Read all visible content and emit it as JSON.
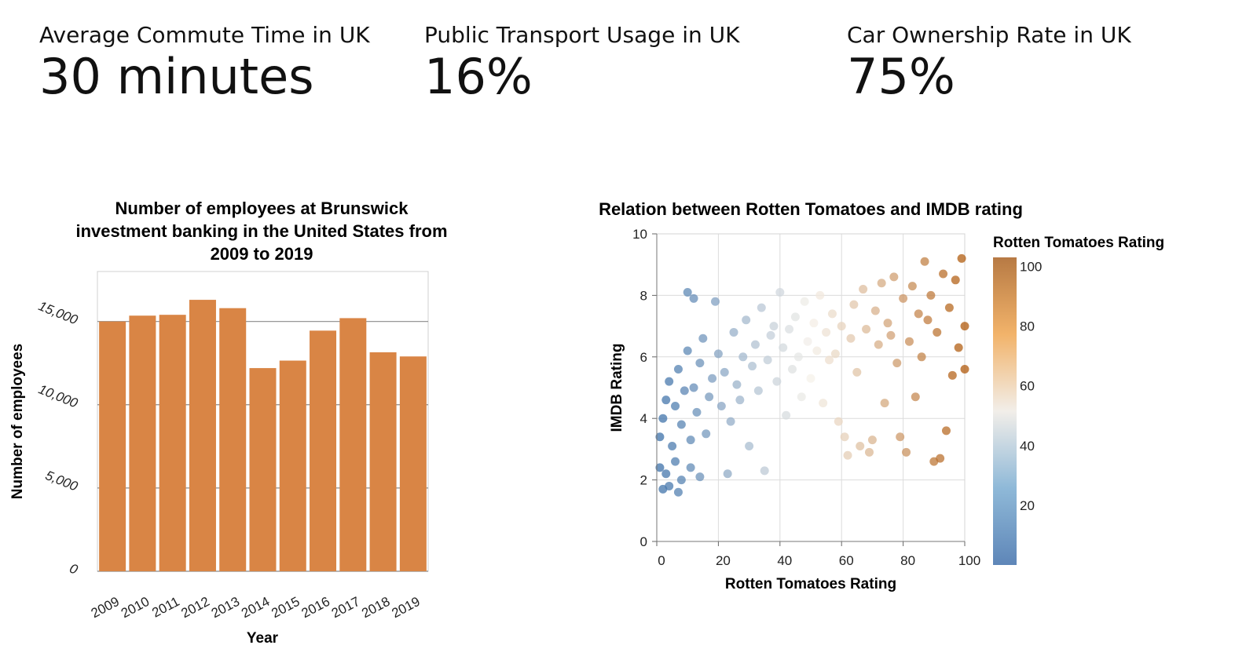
{
  "kpis": [
    {
      "label": "Average Commute Time in UK",
      "value": "30 minutes"
    },
    {
      "label": "Public Transport Usage in UK",
      "value": "16%"
    },
    {
      "label": "Car Ownership Rate in UK",
      "value": "75%"
    }
  ],
  "chart_data": [
    {
      "type": "bar",
      "title": "Number of employees at Brunswick investment banking in the United States from 2009 to 2019",
      "title_lines": [
        "Number of employees at Brunswick",
        "investment banking in the United States from",
        "2009 to 2019"
      ],
      "xlabel": "Year",
      "ylabel": "Number of employees",
      "categories": [
        "2009",
        "2010",
        "2011",
        "2012",
        "2013",
        "2014",
        "2015",
        "2016",
        "2017",
        "2018",
        "2019"
      ],
      "values": [
        15000,
        15350,
        15400,
        16300,
        15800,
        12200,
        12650,
        14450,
        15200,
        13150,
        12900
      ],
      "ylim": [
        0,
        18000
      ],
      "yticks": [
        0,
        5000,
        10000,
        15000
      ],
      "ytick_labels": [
        "0",
        "5,000",
        "10,000",
        "15,000"
      ],
      "bar_color": "#d98545",
      "grid": true
    },
    {
      "type": "scatter",
      "title": "Relation between Rotten Tomatoes and IMDB rating",
      "xlabel": "Rotten Tomatoes Rating",
      "ylabel": "IMDB Rating",
      "xlim": [
        0,
        100
      ],
      "ylim": [
        0,
        10
      ],
      "xticks": [
        "0",
        "20",
        "40",
        "60",
        "80",
        "100"
      ],
      "yticks": [
        "0",
        "2",
        "4",
        "6",
        "8",
        "10"
      ],
      "legend": {
        "title": "Rotten Tomatoes Rating",
        "labels": [
          "100",
          "80",
          "60",
          "40",
          "20"
        ],
        "position": "right"
      },
      "color_scale": {
        "low": "#3a6fa8",
        "mid": "#f5f1ea",
        "high": "#b05a0c"
      },
      "grid": true,
      "points": [
        {
          "x": 1,
          "y": 2.4
        },
        {
          "x": 2,
          "y": 1.7
        },
        {
          "x": 3,
          "y": 2.2
        },
        {
          "x": 4,
          "y": 1.8
        },
        {
          "x": 6,
          "y": 2.6
        },
        {
          "x": 8,
          "y": 2.0
        },
        {
          "x": 7,
          "y": 1.6
        },
        {
          "x": 11,
          "y": 2.4
        },
        {
          "x": 14,
          "y": 2.1
        },
        {
          "x": 1,
          "y": 3.4
        },
        {
          "x": 2,
          "y": 4.0
        },
        {
          "x": 3,
          "y": 4.6
        },
        {
          "x": 4,
          "y": 5.2
        },
        {
          "x": 5,
          "y": 3.1
        },
        {
          "x": 6,
          "y": 4.4
        },
        {
          "x": 7,
          "y": 5.6
        },
        {
          "x": 8,
          "y": 3.8
        },
        {
          "x": 9,
          "y": 4.9
        },
        {
          "x": 10,
          "y": 6.2
        },
        {
          "x": 10,
          "y": 8.1
        },
        {
          "x": 12,
          "y": 7.9
        },
        {
          "x": 11,
          "y": 3.3
        },
        {
          "x": 12,
          "y": 5.0
        },
        {
          "x": 13,
          "y": 4.2
        },
        {
          "x": 14,
          "y": 5.8
        },
        {
          "x": 15,
          "y": 6.6
        },
        {
          "x": 16,
          "y": 3.5
        },
        {
          "x": 17,
          "y": 4.7
        },
        {
          "x": 18,
          "y": 5.3
        },
        {
          "x": 19,
          "y": 7.8
        },
        {
          "x": 20,
          "y": 6.1
        },
        {
          "x": 21,
          "y": 4.4
        },
        {
          "x": 22,
          "y": 5.5
        },
        {
          "x": 23,
          "y": 2.2
        },
        {
          "x": 24,
          "y": 3.9
        },
        {
          "x": 25,
          "y": 6.8
        },
        {
          "x": 26,
          "y": 5.1
        },
        {
          "x": 27,
          "y": 4.6
        },
        {
          "x": 28,
          "y": 6.0
        },
        {
          "x": 29,
          "y": 7.2
        },
        {
          "x": 30,
          "y": 3.1
        },
        {
          "x": 31,
          "y": 5.7
        },
        {
          "x": 32,
          "y": 6.4
        },
        {
          "x": 33,
          "y": 4.9
        },
        {
          "x": 34,
          "y": 7.6
        },
        {
          "x": 35,
          "y": 2.3
        },
        {
          "x": 36,
          "y": 5.9
        },
        {
          "x": 37,
          "y": 6.7
        },
        {
          "x": 38,
          "y": 7.0
        },
        {
          "x": 39,
          "y": 5.2
        },
        {
          "x": 40,
          "y": 8.1
        },
        {
          "x": 41,
          "y": 6.3
        },
        {
          "x": 42,
          "y": 4.1
        },
        {
          "x": 43,
          "y": 6.9
        },
        {
          "x": 44,
          "y": 5.6
        },
        {
          "x": 45,
          "y": 7.3
        },
        {
          "x": 46,
          "y": 6.0
        },
        {
          "x": 47,
          "y": 4.7
        },
        {
          "x": 48,
          "y": 7.8
        },
        {
          "x": 49,
          "y": 6.5
        },
        {
          "x": 50,
          "y": 5.3
        },
        {
          "x": 51,
          "y": 7.1
        },
        {
          "x": 52,
          "y": 6.2
        },
        {
          "x": 53,
          "y": 8.0
        },
        {
          "x": 54,
          "y": 4.5
        },
        {
          "x": 55,
          "y": 6.8
        },
        {
          "x": 56,
          "y": 5.9
        },
        {
          "x": 57,
          "y": 7.4
        },
        {
          "x": 58,
          "y": 6.1
        },
        {
          "x": 59,
          "y": 3.9
        },
        {
          "x": 60,
          "y": 7.0
        },
        {
          "x": 61,
          "y": 3.4
        },
        {
          "x": 62,
          "y": 2.8
        },
        {
          "x": 63,
          "y": 6.6
        },
        {
          "x": 64,
          "y": 7.7
        },
        {
          "x": 65,
          "y": 5.5
        },
        {
          "x": 66,
          "y": 3.1
        },
        {
          "x": 67,
          "y": 8.2
        },
        {
          "x": 68,
          "y": 6.9
        },
        {
          "x": 69,
          "y": 2.9
        },
        {
          "x": 70,
          "y": 3.3
        },
        {
          "x": 71,
          "y": 7.5
        },
        {
          "x": 72,
          "y": 6.4
        },
        {
          "x": 73,
          "y": 8.4
        },
        {
          "x": 74,
          "y": 4.5
        },
        {
          "x": 75,
          "y": 7.1
        },
        {
          "x": 76,
          "y": 6.7
        },
        {
          "x": 77,
          "y": 8.6
        },
        {
          "x": 78,
          "y": 5.8
        },
        {
          "x": 79,
          "y": 3.4
        },
        {
          "x": 80,
          "y": 7.9
        },
        {
          "x": 81,
          "y": 2.9
        },
        {
          "x": 82,
          "y": 6.5
        },
        {
          "x": 83,
          "y": 8.3
        },
        {
          "x": 84,
          "y": 4.7
        },
        {
          "x": 85,
          "y": 7.4
        },
        {
          "x": 86,
          "y": 6.0
        },
        {
          "x": 87,
          "y": 9.1
        },
        {
          "x": 88,
          "y": 7.2
        },
        {
          "x": 89,
          "y": 8.0
        },
        {
          "x": 90,
          "y": 2.6
        },
        {
          "x": 91,
          "y": 6.8
        },
        {
          "x": 92,
          "y": 2.7
        },
        {
          "x": 93,
          "y": 8.7
        },
        {
          "x": 94,
          "y": 3.6
        },
        {
          "x": 95,
          "y": 7.6
        },
        {
          "x": 96,
          "y": 5.4
        },
        {
          "x": 97,
          "y": 8.5
        },
        {
          "x": 98,
          "y": 6.3
        },
        {
          "x": 99,
          "y": 9.2
        },
        {
          "x": 100,
          "y": 7.0
        },
        {
          "x": 100,
          "y": 5.6
        }
      ]
    }
  ]
}
